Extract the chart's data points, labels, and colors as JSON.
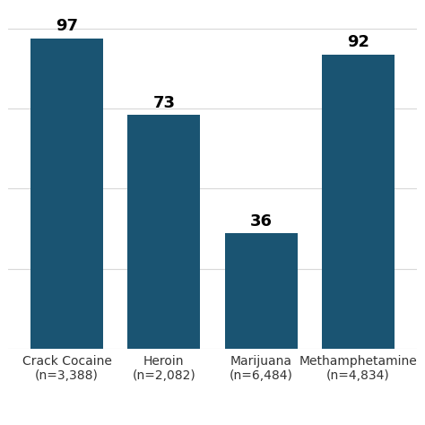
{
  "categories": [
    "Crack Cocaine\n(n=3,388)",
    "Heroin\n(n=2,082)",
    "Marijuana\n(n=6,484)",
    "Methamphetamine\n(n=4,834)"
  ],
  "values": [
    97,
    73,
    36,
    92
  ],
  "bar_color": "#1a5472",
  "background_color": "#ffffff",
  "ylim": [
    0,
    105
  ],
  "yticks": [
    0,
    25,
    50,
    75,
    100
  ],
  "bar_width": 0.75,
  "value_fontsize": 13,
  "tick_fontsize": 10,
  "grid_color": "#d8d8d8",
  "grid_linewidth": 0.8
}
